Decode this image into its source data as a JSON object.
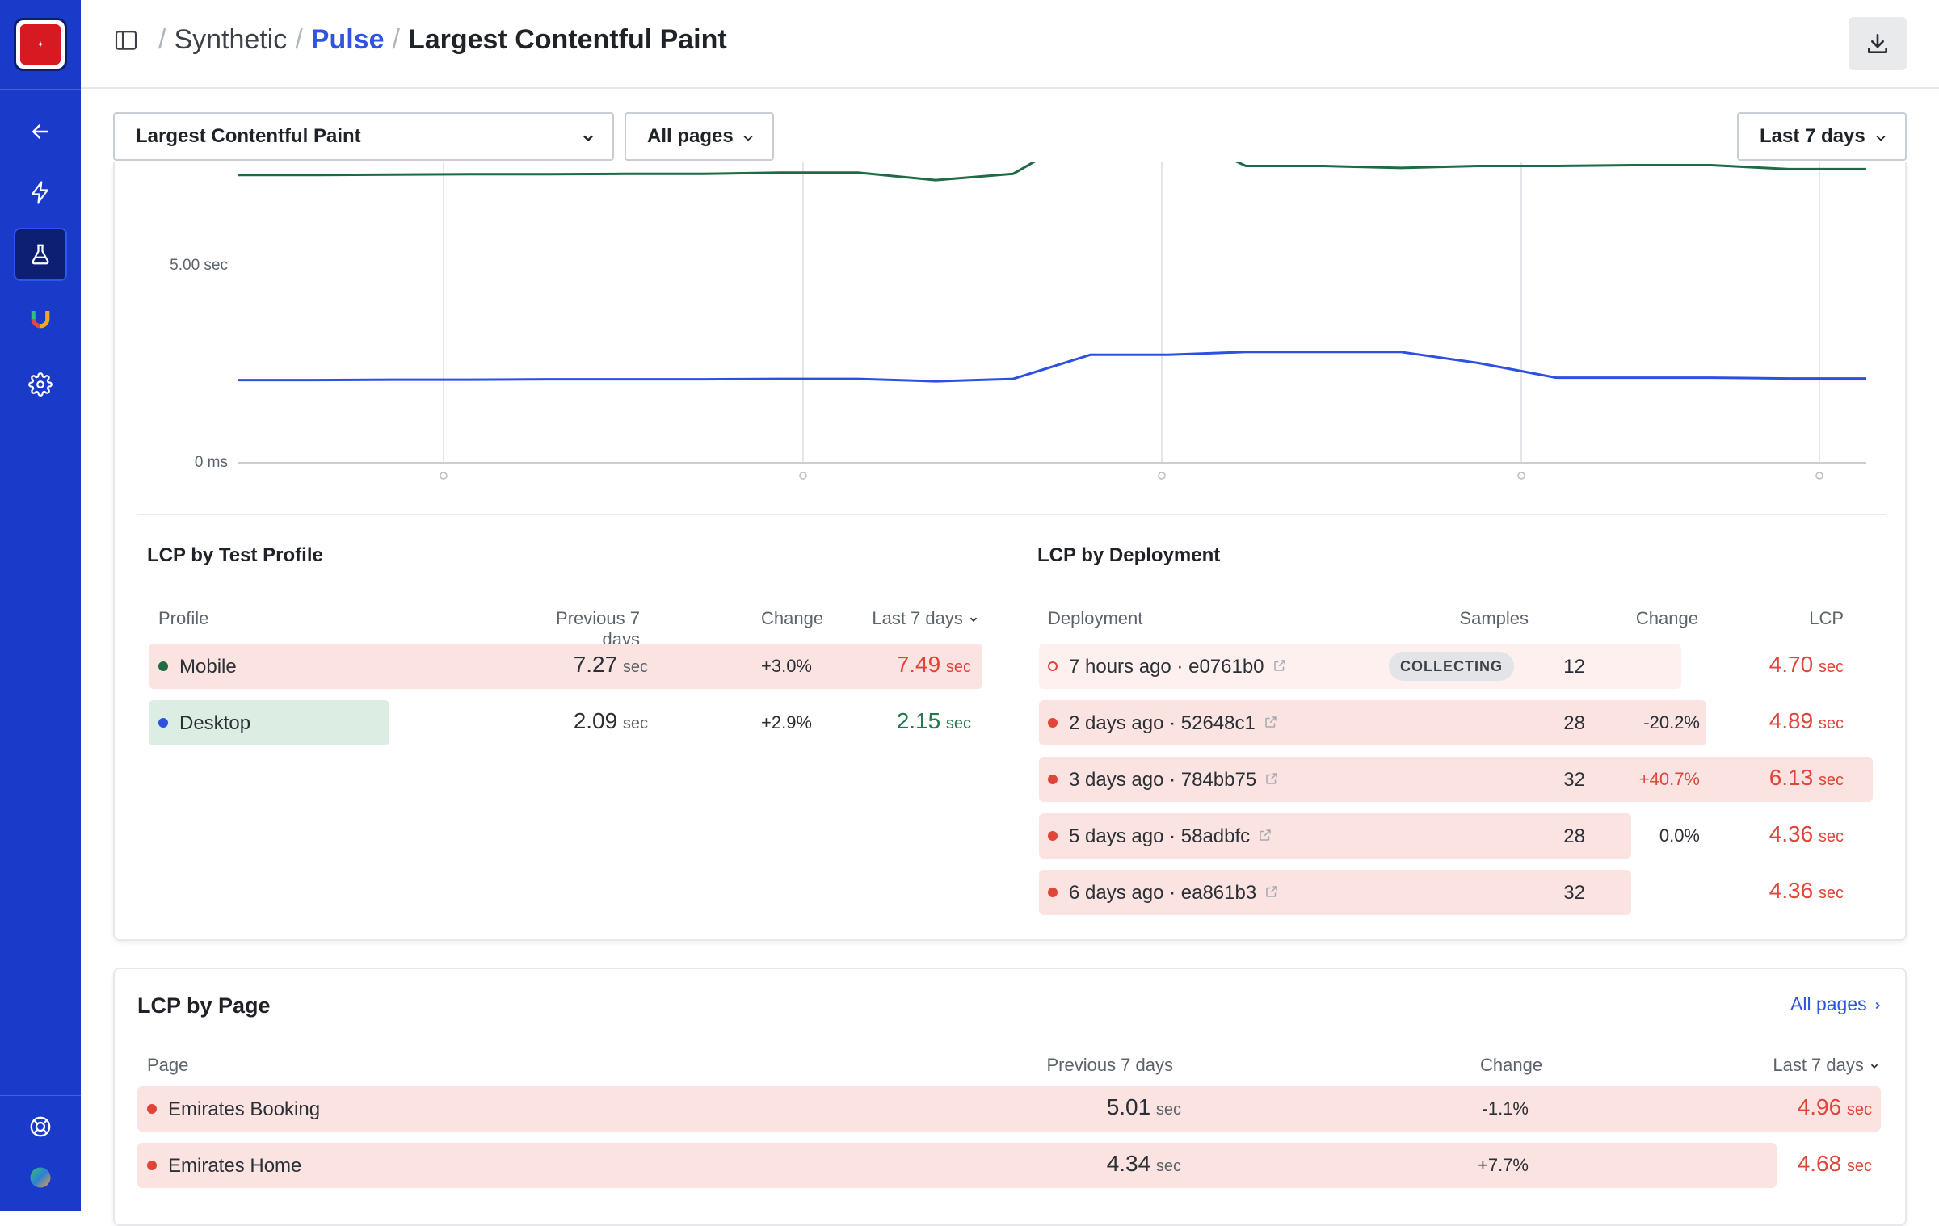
{
  "breadcrumb": {
    "items": [
      "Synthetic",
      "Pulse",
      "Largest Contentful Paint"
    ]
  },
  "toolbar": {
    "metric_select": "Largest Contentful Paint",
    "pages_select": "All pages",
    "range_select": "Last 7 days"
  },
  "chart_data": {
    "type": "line",
    "y_ticks": [
      "5.00 sec",
      "0 ms"
    ],
    "series": [
      {
        "color": "#1f6b45",
        "values_sec": [
          7.27,
          7.27,
          7.28,
          7.29,
          7.29,
          7.3,
          7.3,
          7.33,
          7.33,
          7.14,
          7.3,
          7.9,
          7.9,
          7.5,
          7.5,
          7.45,
          7.5,
          7.5,
          7.52,
          7.52,
          7.42,
          7.42
        ]
      },
      {
        "color": "#2c50e0",
        "values_sec": [
          2.09,
          2.09,
          2.1,
          2.1,
          2.11,
          2.11,
          2.11,
          2.12,
          2.12,
          2.06,
          2.12,
          2.73,
          2.73,
          2.8,
          2.8,
          2.8,
          2.52,
          2.15,
          2.15,
          2.15,
          2.13,
          2.13
        ]
      }
    ],
    "grid": true
  },
  "profile_table": {
    "title": "LCP by Test Profile",
    "headers": {
      "profile": "Profile",
      "previous": "Previous 7 days",
      "change": "Change",
      "current": "Last 7 days"
    },
    "rows": [
      {
        "name": "Mobile",
        "dot": "#1f6b45",
        "previous": "7.27",
        "change": "+3.0%",
        "current": "7.49",
        "unit": "sec",
        "status": "red",
        "bar_fraction": 1.0
      },
      {
        "name": "Desktop",
        "dot": "#2c50e0",
        "previous": "2.09",
        "change": "+2.9%",
        "current": "2.15",
        "unit": "sec",
        "status": "green",
        "bar_fraction": 0.29
      }
    ]
  },
  "deployment_table": {
    "title": "LCP by Deployment",
    "headers": {
      "deployment": "Deployment",
      "samples": "Samples",
      "change": "Change",
      "lcp": "LCP"
    },
    "rows": [
      {
        "label": "7 hours ago · e0761b0",
        "badge": "COLLECTING",
        "samples": "12",
        "change": "",
        "lcp": "4.70",
        "unit": "sec",
        "bar_fraction": 0.77,
        "collecting": true
      },
      {
        "label": "2 days ago · 52648c1",
        "samples": "28",
        "change": "-20.2%",
        "lcp": "4.89",
        "unit": "sec",
        "bar_fraction": 0.8
      },
      {
        "label": "3 days ago · 784bb75",
        "samples": "32",
        "change": "+40.7%",
        "lcp": "6.13",
        "unit": "sec",
        "bar_fraction": 1.0
      },
      {
        "label": "5 days ago · 58adbfc",
        "samples": "28",
        "change": "0.0%",
        "lcp": "4.36",
        "unit": "sec",
        "bar_fraction": 0.71
      },
      {
        "label": "6 days ago · ea861b3",
        "samples": "32",
        "change": "",
        "lcp": "4.36",
        "unit": "sec",
        "bar_fraction": 0.71
      }
    ]
  },
  "page_table": {
    "title": "LCP by Page",
    "all_pages_link": "All pages",
    "headers": {
      "page": "Page",
      "previous": "Previous 7 days",
      "change": "Change",
      "current": "Last 7 days"
    },
    "rows": [
      {
        "name": "Emirates Booking",
        "previous": "5.01",
        "change": "-1.1%",
        "current": "4.96",
        "unit": "sec",
        "bar_fraction": 1.0
      },
      {
        "name": "Emirates Home",
        "previous": "4.34",
        "change": "+7.7%",
        "current": "4.68",
        "unit": "sec",
        "bar_fraction": 0.94
      }
    ]
  },
  "icons": [
    "back-arrow-icon",
    "bolt-icon",
    "flask-icon",
    "u-logo-icon",
    "gear-icon",
    "help-wheel-icon",
    "avatar",
    "panel-toggle-icon",
    "download-icon",
    "external-link-icon",
    "chevron-down-icon"
  ]
}
